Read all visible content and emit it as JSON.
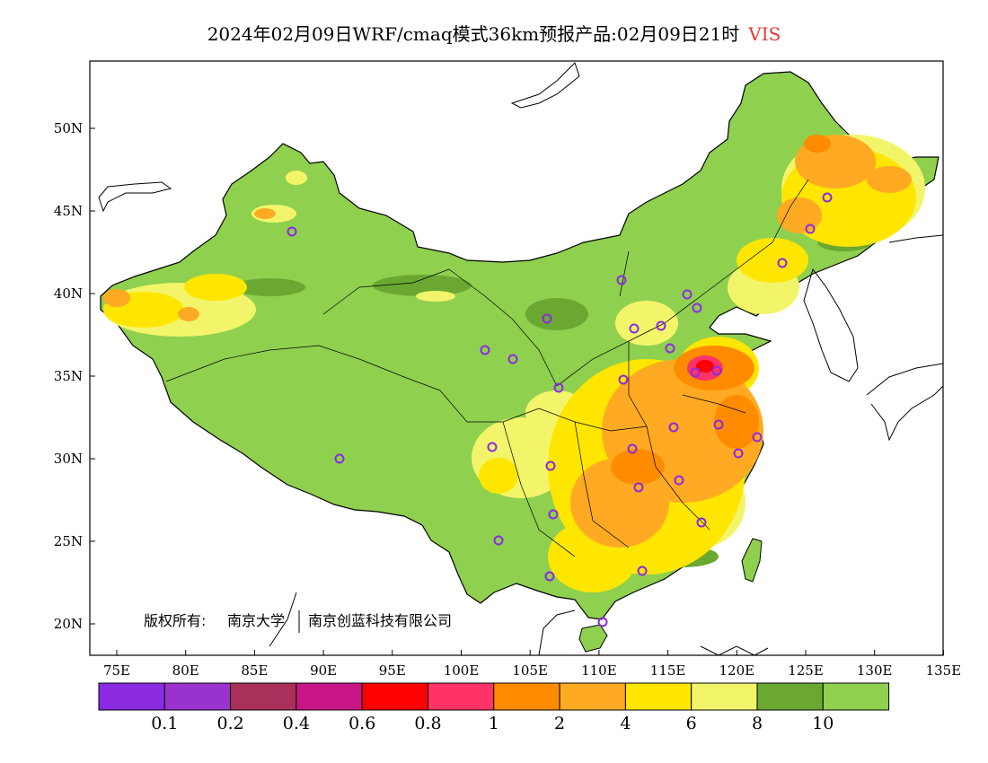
{
  "title": {
    "main": "2024年02月09日WRF/cmaq模式36km预报产品:02月09日21时",
    "variable": "VIS"
  },
  "axes": {
    "lat_ticks": [
      "50N",
      "45N",
      "40N",
      "35N",
      "30N",
      "25N",
      "20N"
    ],
    "lon_ticks": [
      "75E",
      "80E",
      "85E",
      "90E",
      "95E",
      "100E",
      "105E",
      "110E",
      "115E",
      "120E",
      "125E",
      "130E",
      "135E"
    ],
    "lon_range": [
      73,
      135
    ],
    "lat_range": [
      18,
      54
    ]
  },
  "copyright": {
    "prefix": "版权所有:",
    "org1": "南京大学",
    "org2": "南京创蓝科技有限公司"
  },
  "legend": {
    "colors": [
      "#8a2be2",
      "#9a32cd",
      "#a9305a",
      "#c71585",
      "#ff0000",
      "#ff3366",
      "#ff8c00",
      "#ffaa22",
      "#ffe600",
      "#f2f56a",
      "#6aa832",
      "#8fd04f"
    ],
    "labels": [
      "0.1",
      "0.2",
      "0.4",
      "0.6",
      "0.8",
      "1",
      "2",
      "4",
      "6",
      "8",
      "10"
    ]
  },
  "colors": {
    "land_base": "#8fd04f",
    "border": "#000000",
    "station_marker": "#8a2be2"
  }
}
